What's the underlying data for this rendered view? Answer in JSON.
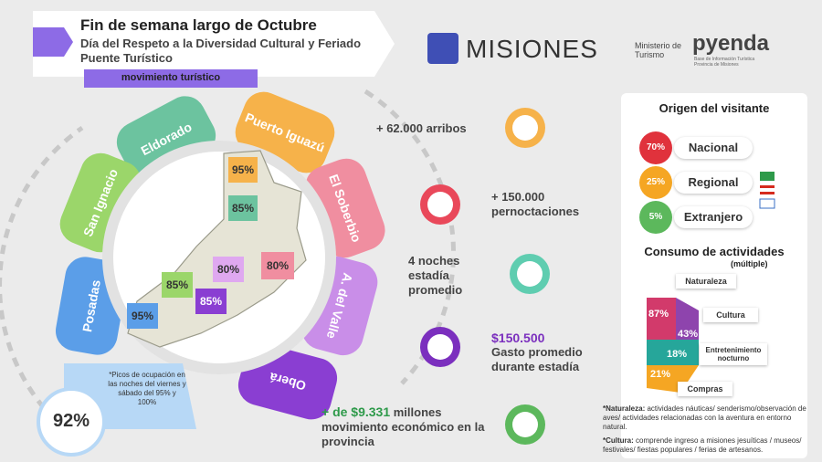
{
  "header": {
    "title": "Fin de semana largo de Octubre",
    "subtitle": "Día del Respeto a la Diversidad Cultural y Feriado Puente Turístico",
    "tag": "movimiento turístico"
  },
  "logos": {
    "misiones": "MISIONES",
    "ministerio": "Ministerio de Turismo",
    "pyenda": "pyenda",
    "pyenda_sub": "Base de Información Turística Provincia de Misiones"
  },
  "regions": [
    "Eldorado",
    "Puerto Iguazú",
    "El Soberbio",
    "A. del Valle",
    "Oberá",
    "Posadas",
    "San Ignacio"
  ],
  "map_labels": [
    "95%",
    "85%",
    "80%",
    "80%",
    "85%",
    "85%",
    "95%"
  ],
  "occupancy": {
    "value": "92%",
    "note": "*Picos de ocupación en las noches del viernes y sábado del 95% y 100%"
  },
  "stats": [
    {
      "text": "+ 62.000 arribos"
    },
    {
      "text": "+ 150.000 pernoctaciones"
    },
    {
      "text": "4 noches estadía promedio"
    },
    {
      "highlight": "$150.500",
      "text": "Gasto promedio durante estadía"
    },
    {
      "highlight": "+ de $9.331",
      "text": "millones movimiento económico en la provincia"
    }
  ],
  "origin": {
    "title": "Origen del visitante",
    "items": [
      {
        "pct": "70%",
        "label": "Nacional"
      },
      {
        "pct": "25%",
        "label": "Regional"
      },
      {
        "pct": "5%",
        "label": "Extranjero"
      }
    ]
  },
  "activities": {
    "title": "Consumo de actividades",
    "subtitle": "(múltiple)",
    "items": [
      {
        "pct": "87%",
        "label": "Naturaleza"
      },
      {
        "pct": "43%",
        "label": "Cultura"
      },
      {
        "pct": "18%",
        "label": "Entretenimiento nocturno"
      },
      {
        "pct": "21%",
        "label": "Compras"
      }
    ]
  },
  "notes": [
    {
      "label": "*Naturaleza:",
      "text": "actividades náuticas/ senderismo/observación de aves/ actividades relacionadas con la aventura en entorno natural."
    },
    {
      "label": "*Cultura:",
      "text": "comprende ingreso a misiones jesuíticas / museos/ festivales/ fiestas populares / ferias de artesanos."
    }
  ]
}
